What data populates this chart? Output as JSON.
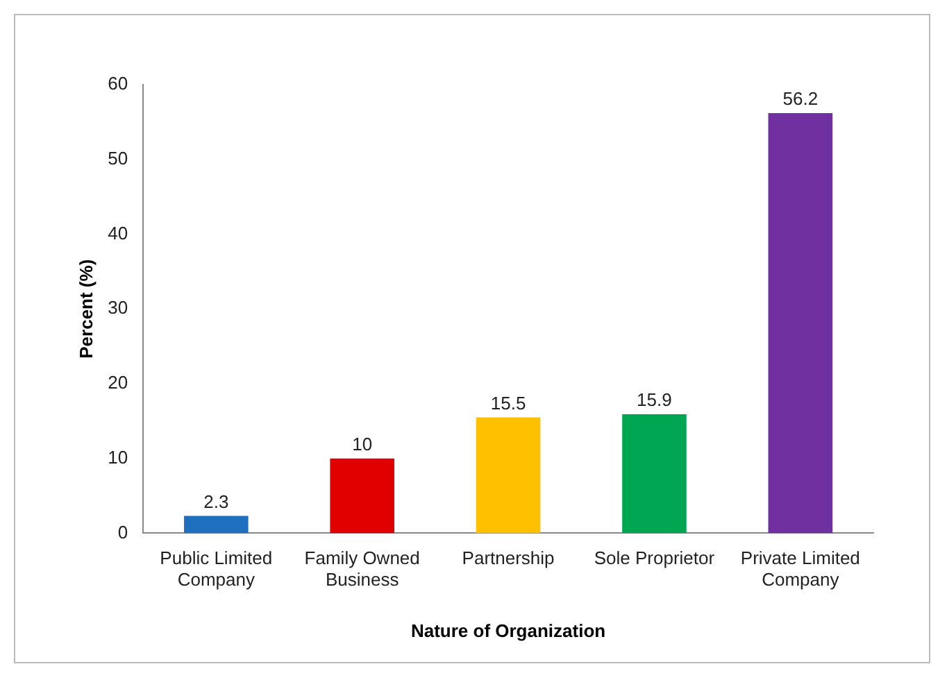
{
  "chart_data": {
    "type": "bar",
    "xlabel": "Nature of Organization",
    "ylabel": "Percent (%)",
    "categories": [
      "Public Limited Company",
      "Family Owned Business",
      "Partnership",
      "Sole Proprietor",
      "Private Limited Company"
    ],
    "values": [
      2.3,
      10,
      15.5,
      15.9,
      56.2
    ],
    "colors": [
      "#1f6fbf",
      "#e00000",
      "#ffc000",
      "#00a651",
      "#7030a0"
    ],
    "ylim": [
      0,
      60
    ],
    "yticks": [
      0,
      10,
      20,
      30,
      40,
      50,
      60
    ],
    "grid": false,
    "legend": false,
    "data_labels": true
  }
}
